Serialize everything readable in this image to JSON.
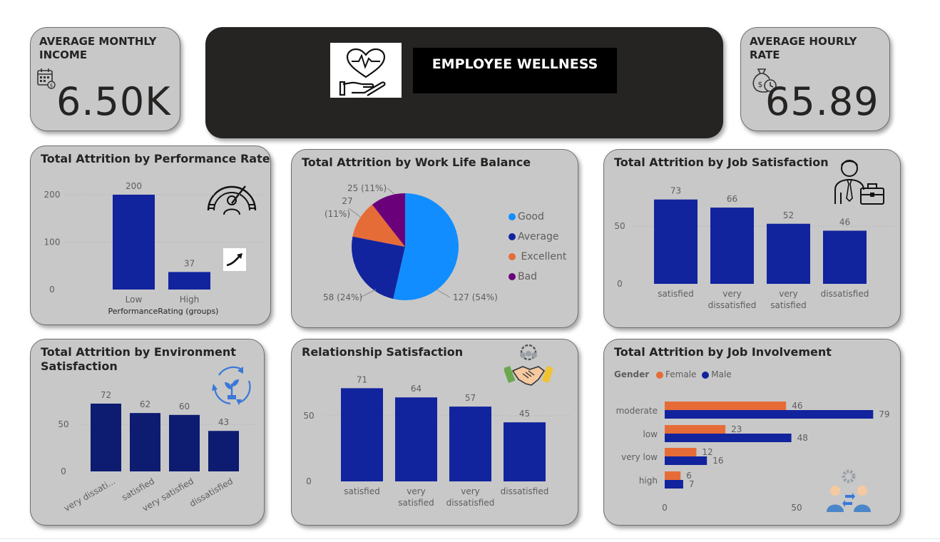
{
  "kpis": {
    "monthly_income": {
      "title": "AVERAGE MONTHLY INCOME",
      "value": "6.50K",
      "icon": "calendar-money-icon"
    },
    "hourly_rate": {
      "title": "AVERAGE HOURLY RATE",
      "value": "65.89",
      "icon": "money-bag-clock-icon"
    }
  },
  "banner": {
    "title": "EMPLOYEE WELLNESS",
    "icon": "heart-hand-icon"
  },
  "colors": {
    "bar": "#12239e",
    "dark_bar": "#0d1b70",
    "female": "#e66c37",
    "male": "#12239e",
    "good": "#118dff",
    "average": "#12239e",
    "excellent": "#e66c37",
    "bad": "#6b007b"
  },
  "cards": {
    "performance": {
      "title": "Total Attrition by Performance Rate",
      "chart_data": {
        "type": "bar",
        "categories": [
          "Low",
          "High"
        ],
        "values": [
          200,
          37
        ],
        "xlabel": "PerformanceRating (groups)",
        "ylabel": "",
        "ylim": [
          0,
          220
        ],
        "yticks": [
          0,
          100,
          200
        ]
      }
    },
    "worklife": {
      "title": "Total Attrition by Work Life Balance",
      "chart_data": {
        "type": "pie",
        "slices": [
          {
            "name": "Good",
            "value": 127,
            "label": "127 (54%)"
          },
          {
            "name": "Average",
            "value": 58,
            "label": "58 (24%)"
          },
          {
            "name": "Excellent",
            "value": 27,
            "label": "27 (11%)"
          },
          {
            "name": "Bad",
            "value": 25,
            "label": "25 (11%)"
          }
        ],
        "legend": [
          "Good",
          "Average",
          "Excellent",
          "Bad"
        ],
        "legend_position": "right"
      }
    },
    "job_satisfaction": {
      "title": "Total Attrition by Job Satisfaction",
      "chart_data": {
        "type": "bar",
        "categories": [
          "satisfied",
          "very dissatisfied",
          "very satisfied",
          "dissatisfied"
        ],
        "values": [
          73,
          66,
          52,
          46
        ],
        "ylim": [
          0,
          80
        ],
        "yticks": [
          0,
          50
        ]
      }
    },
    "environment": {
      "title": "Total Attrition by Environment Satisfaction",
      "chart_data": {
        "type": "bar",
        "categories": [
          "very dissati...",
          "satisfied",
          "very satisfied",
          "dissatisfied"
        ],
        "values": [
          72,
          62,
          60,
          43
        ],
        "ylim": [
          0,
          80
        ],
        "yticks": [
          0,
          50
        ]
      }
    },
    "relationship": {
      "title": "Relationship Satisfaction",
      "chart_data": {
        "type": "bar",
        "categories": [
          "satisfied",
          "very satisfied",
          "very dissatisfied",
          "dissatisfied"
        ],
        "values": [
          71,
          64,
          57,
          45
        ],
        "ylim": [
          0,
          80
        ],
        "yticks": [
          0,
          50
        ]
      }
    },
    "involvement": {
      "title": "Total Attrition by Job Involvement",
      "legend_title": "Gender",
      "chart_data": {
        "type": "bar",
        "orientation": "horizontal",
        "categories": [
          "moderate",
          "low",
          "very low",
          "high"
        ],
        "series": [
          {
            "name": "Female",
            "values": [
              46,
              23,
              12,
              6
            ]
          },
          {
            "name": "Male",
            "values": [
              79,
              48,
              16,
              7
            ]
          }
        ],
        "xlim": [
          0,
          85
        ],
        "xticks": [
          0,
          50
        ],
        "legend_position": "top-left"
      }
    }
  }
}
